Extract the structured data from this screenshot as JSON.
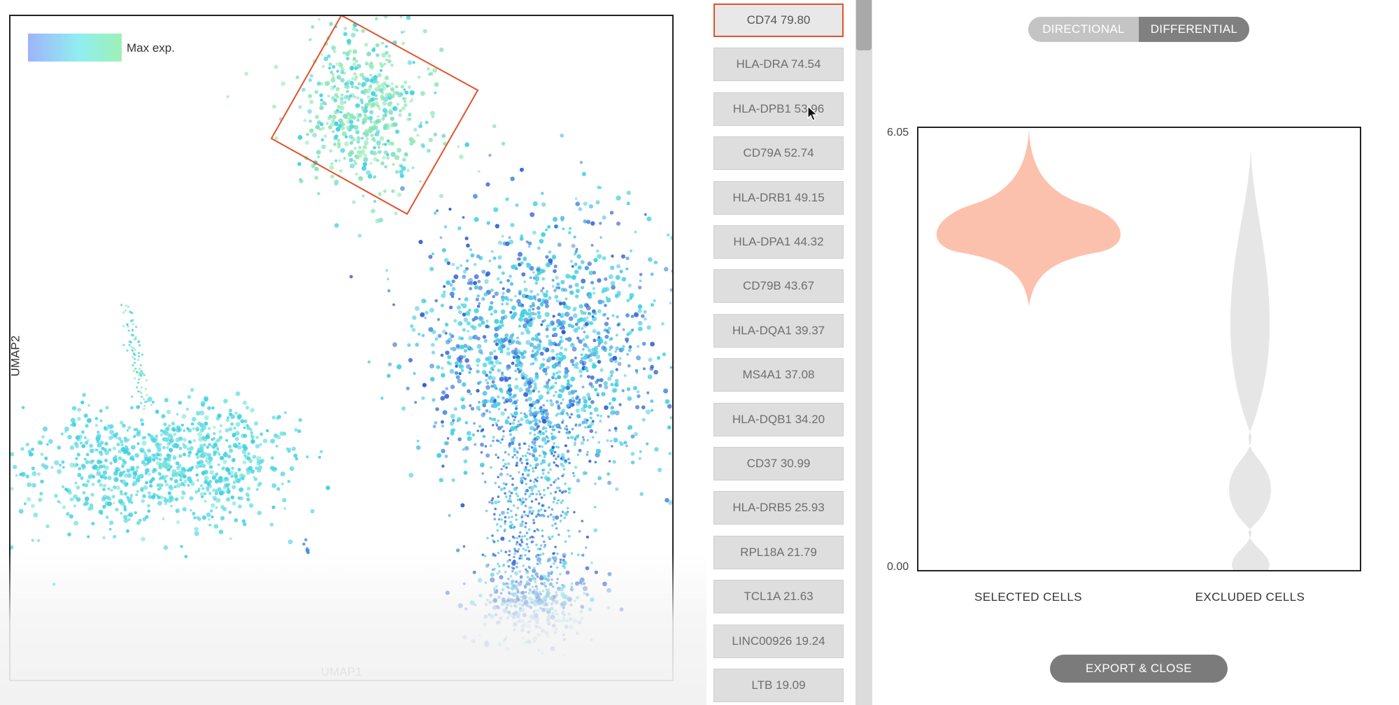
{
  "umap": {
    "legend_label": "Max exp.",
    "x_axis_label": "UMAP1",
    "y_axis_label": "UMAP2",
    "legend_colors": [
      "#9eb4fb",
      "#91eef0",
      "#9df0b6"
    ],
    "selection_color": "#e0522c",
    "point_colors": {
      "high": "#8ee8b0",
      "mid": "#3fd0e0",
      "low": "#4a8ee0",
      "deep": "#2a5bd0"
    }
  },
  "gene_list": {
    "items": [
      {
        "label": "CD74 79.80",
        "selected": true
      },
      {
        "label": "HLA-DRA 74.54",
        "selected": false
      },
      {
        "label": "HLA-DPB1 53.96",
        "selected": false
      },
      {
        "label": "CD79A 52.74",
        "selected": false
      },
      {
        "label": "HLA-DRB1 49.15",
        "selected": false
      },
      {
        "label": "HLA-DPA1 44.32",
        "selected": false
      },
      {
        "label": "CD79B 43.67",
        "selected": false
      },
      {
        "label": "HLA-DQA1 39.37",
        "selected": false
      },
      {
        "label": "MS4A1 37.08",
        "selected": false
      },
      {
        "label": "HLA-DQB1 34.20",
        "selected": false
      },
      {
        "label": "CD37 30.99",
        "selected": false
      },
      {
        "label": "HLA-DRB5 25.93",
        "selected": false
      },
      {
        "label": "RPL18A 21.79",
        "selected": false
      },
      {
        "label": "TCL1A 21.63",
        "selected": false
      },
      {
        "label": "LINC00926 19.24",
        "selected": false
      },
      {
        "label": "LTB 19.09",
        "selected": false
      }
    ]
  },
  "mode_toggle": {
    "options": [
      {
        "label": "DIRECTIONAL",
        "active": false
      },
      {
        "label": "DIFFERENTIAL",
        "active": true
      }
    ]
  },
  "violin": {
    "y_max_label": "6.05",
    "y_min_label": "0.00",
    "selected_label": "SELECTED CELLS",
    "excluded_label": "EXCLUDED CELLS",
    "selected_color": "#fcc1ad",
    "excluded_color": "#e6e6e6"
  },
  "actions": {
    "export_label": "EXPORT & CLOSE"
  }
}
